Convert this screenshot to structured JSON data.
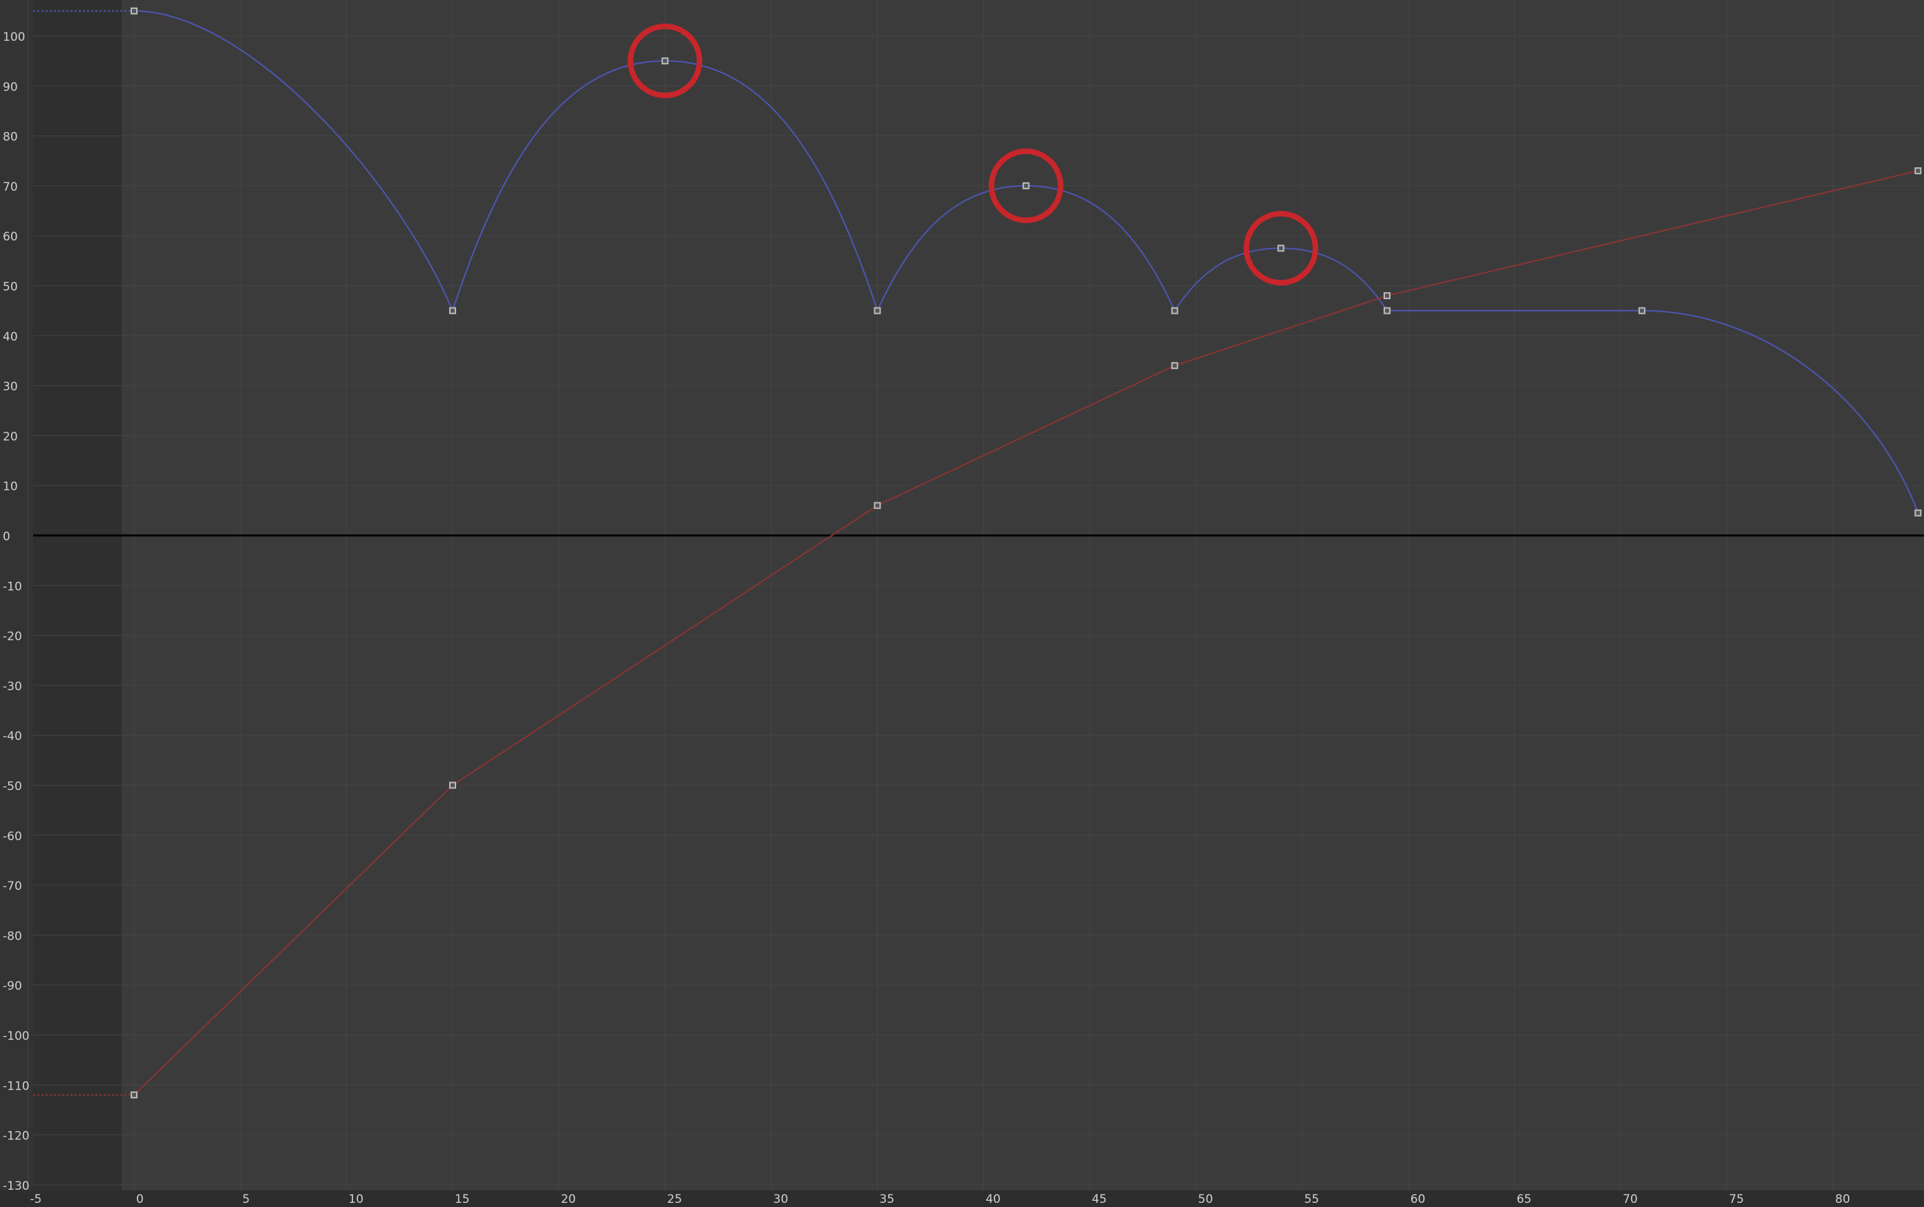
{
  "editor": {
    "colors": {
      "background": "#3b3b3b",
      "gutter": "#333333",
      "pre_range": "#2f2f2f",
      "grid_line": "#454545",
      "zero_line": "#000000",
      "tick_text": "#d0d0d0",
      "blue_curve": "#4d56b3",
      "red_curve": "#8a3434",
      "keyframe": "#bdbdbd",
      "highlight_circle": "#c8262b"
    },
    "y_tick_labels": [
      "100",
      "90",
      "80",
      "70",
      "60",
      "50",
      "40",
      "30",
      "20",
      "10",
      "0",
      "-10",
      "-20",
      "-30",
      "-40",
      "-50",
      "-60",
      "-70",
      "-80",
      "-90",
      "-100",
      "-110",
      "-120",
      "-130"
    ],
    "x_tick_labels": [
      "-5",
      "0",
      "5",
      "10",
      "15",
      "20",
      "25",
      "30",
      "35",
      "40",
      "45",
      "50",
      "55",
      "60",
      "65",
      "70",
      "75",
      "80"
    ]
  },
  "chart_data": {
    "type": "line",
    "title": "",
    "xlabel": "",
    "ylabel": "",
    "xlim": [
      -5.2,
      84.5
    ],
    "ylim": [
      -130,
      106
    ],
    "grid": true,
    "x_ticks": [
      -5,
      0,
      5,
      10,
      15,
      20,
      25,
      30,
      35,
      40,
      45,
      50,
      55,
      60,
      65,
      70,
      75,
      80
    ],
    "y_ticks": [
      100,
      90,
      80,
      70,
      60,
      50,
      40,
      30,
      20,
      10,
      0,
      -10,
      -20,
      -30,
      -40,
      -50,
      -60,
      -70,
      -80,
      -90,
      -100,
      -110,
      -120,
      -130
    ],
    "series": [
      {
        "color": "#4d56b3",
        "keyframes": [
          {
            "x": 0,
            "y": 105
          },
          {
            "x": 15,
            "y": 45
          },
          {
            "x": 25,
            "y": 95
          },
          {
            "x": 35,
            "y": 45
          },
          {
            "x": 42,
            "y": 70
          },
          {
            "x": 49,
            "y": 45
          },
          {
            "x": 54,
            "y": 57.5
          },
          {
            "x": 59,
            "y": 45
          },
          {
            "x": 71,
            "y": 45
          },
          {
            "x": 84,
            "y": 4.5
          }
        ]
      },
      {
        "color": "#8a3434",
        "keyframes": [
          {
            "x": 0,
            "y": -112
          },
          {
            "x": 15,
            "y": -50
          },
          {
            "x": 35,
            "y": 6
          },
          {
            "x": 49,
            "y": 34
          },
          {
            "x": 59,
            "y": 48
          },
          {
            "x": 84,
            "y": 73
          }
        ]
      }
    ],
    "highlighted_keyframes": [
      {
        "x": 25,
        "y": 95
      },
      {
        "x": 42,
        "y": 70
      },
      {
        "x": 54,
        "y": 57.5
      }
    ]
  }
}
